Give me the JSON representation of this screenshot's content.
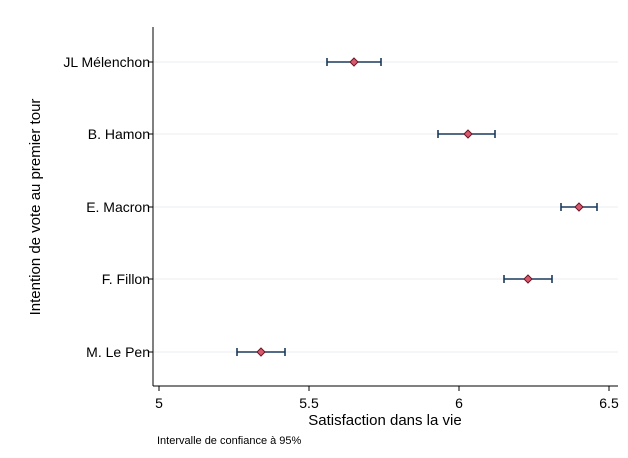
{
  "chart_data": {
    "type": "dot-with-confidence-interval",
    "xlabel": "Satisfaction dans la vie",
    "ylabel": "Intention de vote au premier tour",
    "note": "Intervalle de confiance à 95%",
    "xlim": [
      4.98,
      6.53
    ],
    "xticks": [
      5,
      5.5,
      6,
      6.5
    ],
    "xtick_labels": [
      "5",
      "5.5",
      "6",
      "6.5"
    ],
    "grid": "horizontal",
    "marker_color": "#d9596c",
    "marker_edge_color": "#6a1628",
    "ci_color": "#1a3a5c",
    "categories": [
      "JL Mélenchon",
      "B. Hamon",
      "E. Macron",
      "F. Fillon",
      "M. Le Pen"
    ],
    "points": [
      {
        "category": "JL Mélenchon",
        "value": 5.65,
        "ci_low": 5.56,
        "ci_high": 5.74
      },
      {
        "category": "B. Hamon",
        "value": 6.03,
        "ci_low": 5.93,
        "ci_high": 6.12
      },
      {
        "category": "E. Macron",
        "value": 6.4,
        "ci_low": 6.34,
        "ci_high": 6.46
      },
      {
        "category": "F. Fillon",
        "value": 6.23,
        "ci_low": 6.15,
        "ci_high": 6.31
      },
      {
        "category": "M. Le Pen",
        "value": 5.34,
        "ci_low": 5.26,
        "ci_high": 5.42
      }
    ]
  }
}
